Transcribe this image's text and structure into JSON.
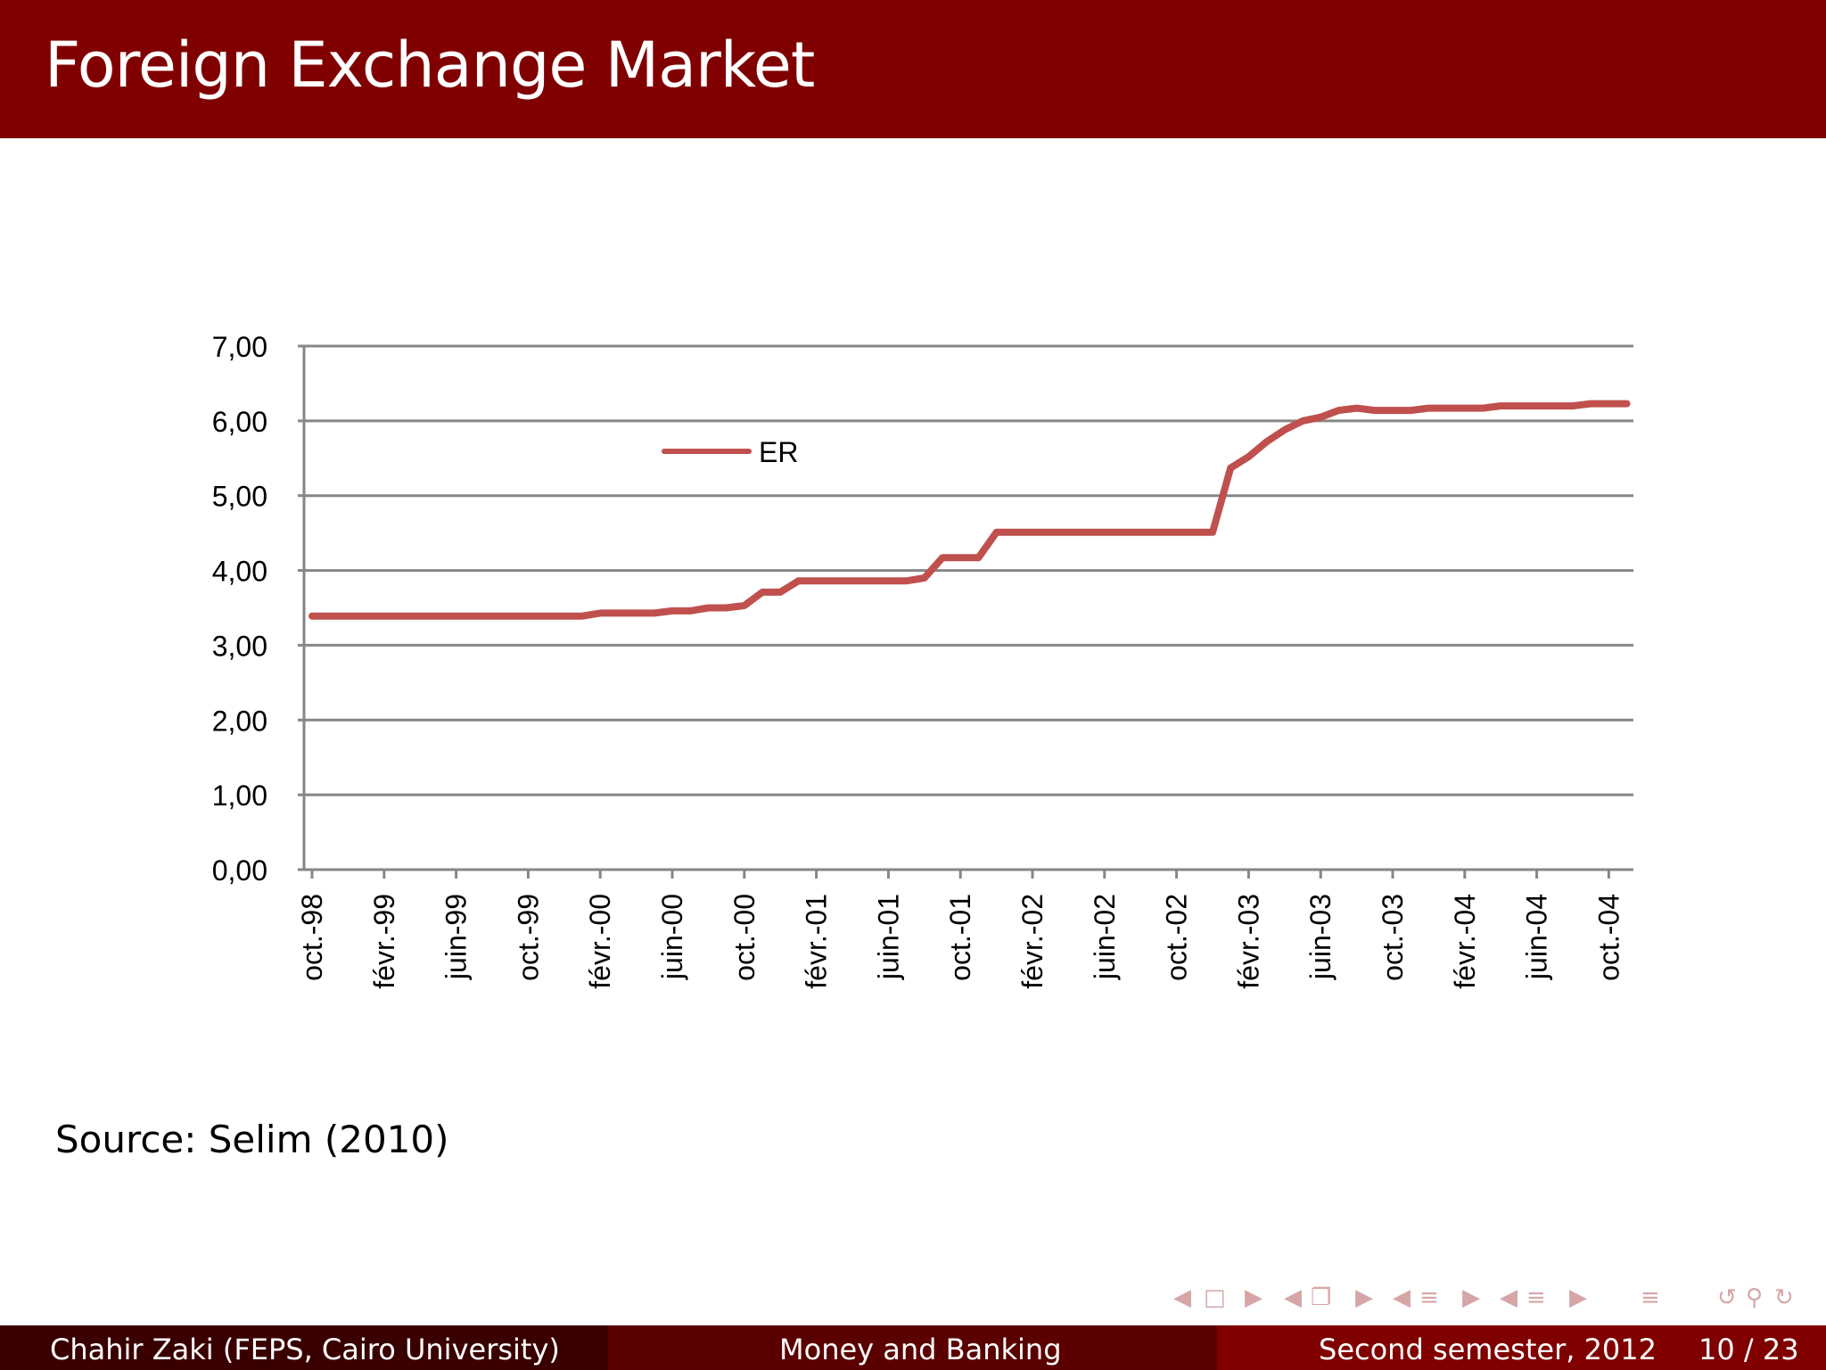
{
  "slide": {
    "title": "Foreign Exchange Market",
    "source": "Source:  Selim (2010)"
  },
  "footer": {
    "author": "Chahir Zaki  (FEPS, Cairo University)",
    "course": "Money and Banking",
    "date": "Second semester, 2012",
    "page": "10 / 23"
  },
  "navigation": {
    "icons": [
      "arrow-left-icon",
      "frame-icon",
      "arrow-right-icon",
      "arrow-left-icon",
      "subsection-icon",
      "arrow-right-icon",
      "arrow-left-icon",
      "section-icon",
      "arrow-right-icon",
      "arrow-left-icon",
      "section-icon",
      "arrow-right-icon",
      "outline-icon",
      "back-icon",
      "search-icon",
      "forward-icon"
    ]
  },
  "colors": {
    "title_bar": "#800000",
    "series_line": "#c0504d",
    "gridline": "#868686"
  },
  "chart_data": {
    "type": "line",
    "title": "",
    "xlabel": "",
    "ylabel": "",
    "ylim": [
      0,
      7
    ],
    "yticks": [
      "0,00",
      "1,00",
      "2,00",
      "3,00",
      "4,00",
      "5,00",
      "6,00",
      "7,00"
    ],
    "grid": true,
    "legend": "top-left",
    "categories": [
      "oct.-98",
      "févr.-99",
      "juin-99",
      "oct.-99",
      "févr.-00",
      "juin-00",
      "oct.-00",
      "févr.-01",
      "juin-01",
      "oct.-01",
      "févr.-02",
      "juin-02",
      "oct.-02",
      "févr.-03",
      "juin-03",
      "oct.-03",
      "févr.-04",
      "juin-04",
      "oct.-04"
    ],
    "series": [
      {
        "name": "ER",
        "x": [
          "1998-10",
          "1998-11",
          "1998-12",
          "1999-01",
          "1999-02",
          "1999-03",
          "1999-04",
          "1999-05",
          "1999-06",
          "1999-07",
          "1999-08",
          "1999-09",
          "1999-10",
          "1999-11",
          "1999-12",
          "2000-01",
          "2000-02",
          "2000-03",
          "2000-04",
          "2000-05",
          "2000-06",
          "2000-07",
          "2000-08",
          "2000-09",
          "2000-10",
          "2000-11",
          "2000-12",
          "2001-01",
          "2001-02",
          "2001-03",
          "2001-04",
          "2001-05",
          "2001-06",
          "2001-07",
          "2001-08",
          "2001-09",
          "2001-10",
          "2001-11",
          "2001-12",
          "2002-01",
          "2002-02",
          "2002-03",
          "2002-04",
          "2002-05",
          "2002-06",
          "2002-07",
          "2002-08",
          "2002-09",
          "2002-10",
          "2002-11",
          "2002-12",
          "2003-01",
          "2003-02",
          "2003-03",
          "2003-04",
          "2003-05",
          "2003-06",
          "2003-07",
          "2003-08",
          "2003-09",
          "2003-10",
          "2003-11",
          "2003-12",
          "2004-01",
          "2004-02",
          "2004-03",
          "2004-04",
          "2004-05",
          "2004-06",
          "2004-07",
          "2004-08",
          "2004-09",
          "2004-10",
          "2004-11"
        ],
        "values": [
          3.39,
          3.39,
          3.39,
          3.39,
          3.39,
          3.39,
          3.39,
          3.39,
          3.39,
          3.39,
          3.39,
          3.39,
          3.39,
          3.39,
          3.39,
          3.39,
          3.43,
          3.43,
          3.43,
          3.43,
          3.46,
          3.46,
          3.5,
          3.5,
          3.53,
          3.71,
          3.71,
          3.86,
          3.86,
          3.86,
          3.86,
          3.86,
          3.86,
          3.86,
          3.9,
          4.17,
          4.17,
          4.17,
          4.51,
          4.51,
          4.51,
          4.51,
          4.51,
          4.51,
          4.51,
          4.51,
          4.51,
          4.51,
          4.51,
          4.51,
          4.51,
          5.37,
          5.52,
          5.72,
          5.88,
          6.0,
          6.05,
          6.14,
          6.17,
          6.14,
          6.14,
          6.14,
          6.17,
          6.17,
          6.17,
          6.17,
          6.2,
          6.2,
          6.2,
          6.2,
          6.2,
          6.23,
          6.23,
          6.23
        ]
      }
    ]
  }
}
